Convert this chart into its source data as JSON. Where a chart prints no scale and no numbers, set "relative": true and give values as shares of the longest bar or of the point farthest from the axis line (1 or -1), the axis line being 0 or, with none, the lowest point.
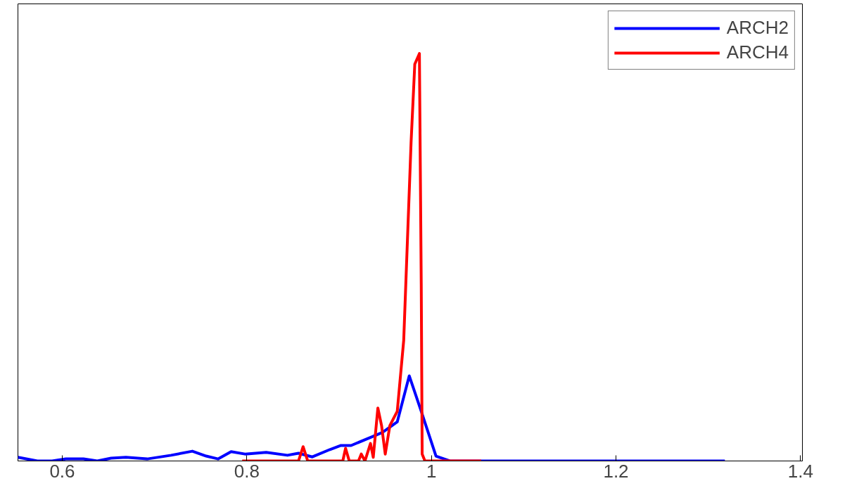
{
  "chart_data": {
    "type": "line",
    "relative": true,
    "xlim": [
      0.552,
      1.402
    ],
    "xticks": [
      0.6,
      0.8,
      1,
      1.2,
      1.4
    ],
    "legend": "top right",
    "grid": false,
    "tick_labels": "x",
    "series": [
      {
        "name": "ARCH2",
        "color": "#0000ff",
        "x": [
          0.552,
          0.573,
          0.589,
          0.604,
          0.623,
          0.638,
          0.653,
          0.669,
          0.692,
          0.718,
          0.741,
          0.756,
          0.769,
          0.783,
          0.798,
          0.821,
          0.844,
          0.856,
          0.871,
          0.89,
          0.902,
          0.913,
          0.932,
          0.947,
          0.963,
          0.976,
          0.989,
          1.005,
          1.02,
          1.318
        ],
        "values": [
          0.009,
          0,
          0,
          0.005,
          0.005,
          0,
          0.007,
          0.009,
          0.005,
          0.014,
          0.024,
          0.012,
          0.005,
          0.023,
          0.017,
          0.021,
          0.014,
          0.019,
          0.01,
          0.028,
          0.038,
          0.038,
          0.056,
          0.07,
          0.096,
          0.209,
          0.122,
          0.012,
          0,
          0
        ]
      },
      {
        "name": "ARCH4",
        "color": "#ff0000",
        "x": [
          0.795,
          0.856,
          0.861,
          0.866,
          0.904,
          0.907,
          0.911,
          0.921,
          0.924,
          0.928,
          0.934,
          0.937,
          0.942,
          0.946,
          0.95,
          0.955,
          0.963,
          0.97,
          0.978,
          0.982,
          0.987,
          0.989,
          0.99,
          0.993,
          1.054
        ],
        "values": [
          0,
          0,
          0.035,
          0,
          0,
          0.031,
          0,
          0,
          0.017,
          0,
          0.043,
          0.009,
          0.13,
          0.087,
          0.017,
          0.087,
          0.122,
          0.296,
          0.783,
          0.974,
          1,
          0.435,
          0.017,
          0,
          0
        ]
      }
    ]
  }
}
